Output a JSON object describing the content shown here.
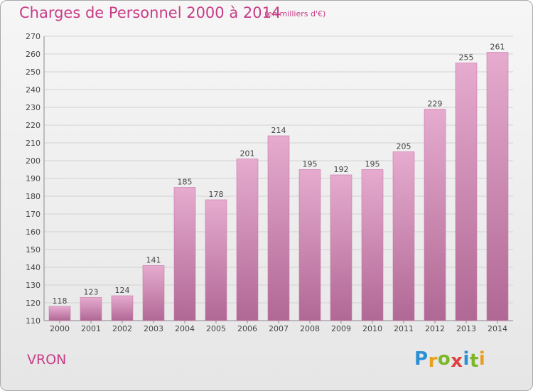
{
  "title": "Charges de Personnel 2000 à 2014",
  "subtitle": "(en milliers d'€)",
  "place": "VRON",
  "logo": {
    "text": "Proxiti",
    "letters": [
      "P",
      "r",
      "o",
      "x",
      "i",
      "t",
      "i"
    ],
    "colors": [
      "#2a8fd4",
      "#e8a020",
      "#7ab829",
      "#e04040",
      "#2a8fd4",
      "#7ab829",
      "#e8a020"
    ]
  },
  "colors": {
    "bar_top": "#e6abcf",
    "bar_bottom": "#b06894",
    "title": "#c83c86"
  },
  "chart_data": {
    "type": "bar",
    "categories": [
      "2000",
      "2001",
      "2002",
      "2003",
      "2004",
      "2005",
      "2006",
      "2007",
      "2008",
      "2009",
      "2010",
      "2011",
      "2012",
      "2013",
      "2014"
    ],
    "values": [
      118,
      123,
      124,
      141,
      185,
      178,
      201,
      214,
      195,
      192,
      195,
      205,
      229,
      255,
      261
    ],
    "data_labels": [
      "118",
      "123",
      "124",
      "141",
      "185",
      "178",
      "201",
      "214",
      "195",
      "192",
      "195",
      "205",
      "229",
      "255",
      "261"
    ],
    "title": "Charges de Personnel 2000 à 2014",
    "subtitle": "(en milliers d'€)",
    "ylim": [
      110,
      270
    ],
    "yticks": [
      "110",
      "120",
      "130",
      "140",
      "150",
      "160",
      "170",
      "180",
      "190",
      "200",
      "210",
      "220",
      "230",
      "240",
      "250",
      "260",
      "270"
    ],
    "grid": true
  }
}
